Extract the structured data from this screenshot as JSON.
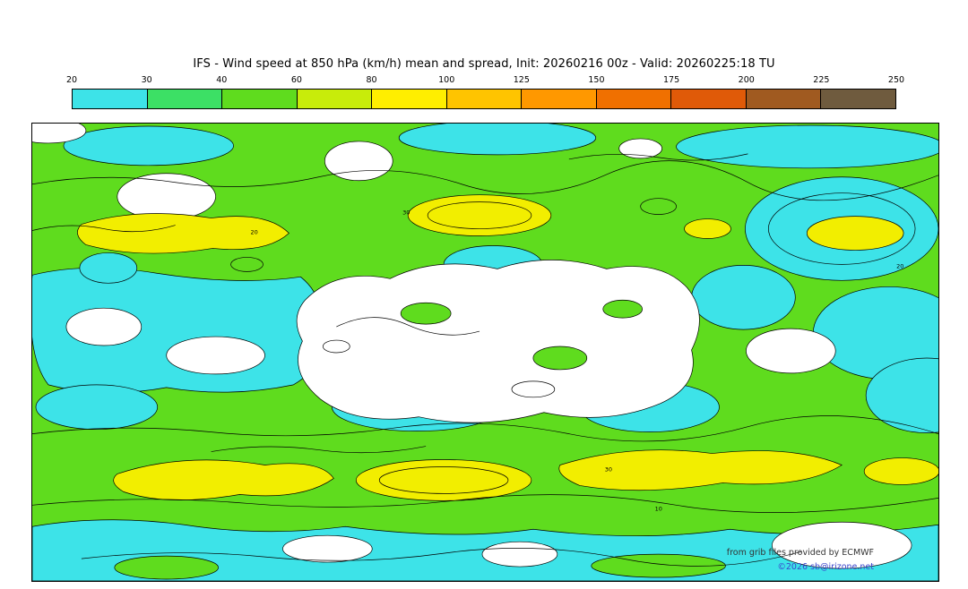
{
  "header": {
    "title": "IFS - Wind speed at 850 hPa (km/h) mean and spread, Init: 20260216 00z - Valid: 20260225:18 TU"
  },
  "colorbar": {
    "levels": [
      "20",
      "30",
      "40",
      "60",
      "80",
      "100",
      "125",
      "150",
      "175",
      "200",
      "225",
      "250"
    ],
    "segment_colors": [
      "#3de3e8",
      "#3ce065",
      "#5fdc1e",
      "#c8ec0a",
      "#ffee00",
      "#ffc400",
      "#ff9800",
      "#f07000",
      "#e05a08",
      "#a05a20",
      "#6f5b3e"
    ]
  },
  "map": {
    "colors": {
      "green": "#5fdc1e",
      "cyan": "#3de3e8",
      "yellow": "#f2ee00",
      "white": "#ffffff",
      "contour": "#000000"
    },
    "contour_labels": [
      "20",
      "30",
      "10",
      "20",
      "30"
    ]
  },
  "footer": {
    "source": "from grib files provided by ECMWF",
    "copyright": "©2026 sb@irizone.net",
    "copyright_color": "#3a45cc"
  },
  "chart_data": {
    "type": "heatmap",
    "title": "IFS - Wind speed at 850 hPa (km/h) mean and spread, Init: 20260216 00z - Valid: 20260225:18 TU",
    "model": "IFS",
    "variable": "Wind speed at 850 hPa",
    "units": "km/h",
    "statistic": "mean and spread",
    "init": "20260216 00z",
    "valid": "20260225:18 TU",
    "levels": [
      20,
      30,
      40,
      60,
      80,
      100,
      125,
      150,
      175,
      200,
      225,
      250
    ],
    "level_colors": [
      "#3de3e8",
      "#3ce065",
      "#5fdc1e",
      "#c8ec0a",
      "#ffee00",
      "#ffc400",
      "#ff9800",
      "#f07000",
      "#e05a08",
      "#a05a20",
      "#6f5b3e"
    ],
    "legend_position": "top",
    "map_style": "global equirectangular filled-contour field with black contour lines; values below 20 km/h shown white"
  }
}
